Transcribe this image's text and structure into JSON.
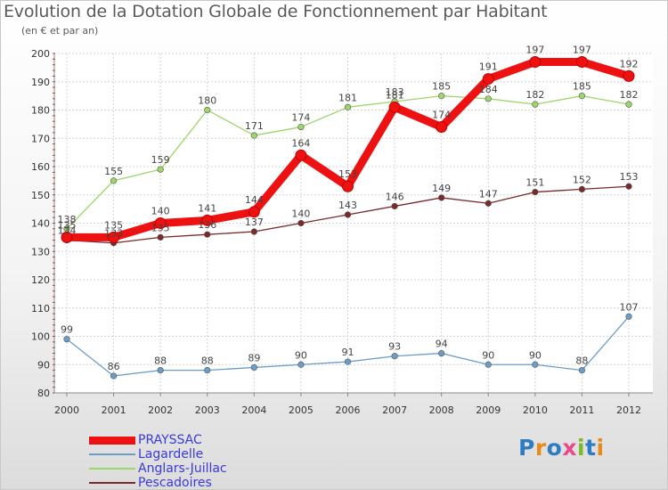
{
  "header": {
    "title": "Evolution de la Dotation Globale de Fonctionnement par Habitant",
    "subtitle": "(en € et par an)"
  },
  "logo": {
    "text": "Proxiti",
    "colors": [
      "#2e7cc4",
      "#e88a1a",
      "#2e7cc4",
      "#e84a8a",
      "#7ab82e",
      "#2e7cc4",
      "#e88a1a"
    ]
  },
  "chart_data": {
    "type": "line",
    "title": "Evolution de la Dotation Globale de Fonctionnement par Habitant",
    "subtitle": "(en € et par an)",
    "xlabel": "",
    "ylabel": "",
    "x": [
      "2000",
      "2001",
      "2002",
      "2003",
      "2004",
      "2005",
      "2006",
      "2007",
      "2008",
      "2009",
      "2010",
      "2011",
      "2012"
    ],
    "ylim": [
      80,
      200
    ],
    "yticks": [
      "80",
      "90",
      "100",
      "110",
      "120",
      "130",
      "140",
      "150",
      "160",
      "170",
      "180",
      "190",
      "200"
    ],
    "grid": true,
    "legend_position": "bottom-left",
    "series": [
      {
        "name": "Lagardelle",
        "color": "#6a9ec8",
        "values": [
          99,
          86,
          88,
          88,
          89,
          90,
          91,
          93,
          94,
          90,
          90,
          88,
          107
        ]
      },
      {
        "name": "Anglars-Juillac",
        "color": "#9dd66a",
        "values": [
          138,
          155,
          159,
          180,
          171,
          174,
          181,
          183,
          185,
          184,
          182,
          185,
          182
        ]
      },
      {
        "name": "Pescadoires",
        "color": "#7a2a2a",
        "values": [
          134,
          133,
          135,
          136,
          137,
          140,
          143,
          146,
          149,
          147,
          151,
          152,
          153
        ]
      },
      {
        "name": "PRAYSSAC",
        "color": "#ee1111",
        "values": [
          135,
          135,
          140,
          141,
          144,
          164,
          153,
          181,
          174,
          191,
          197,
          197,
          192
        ]
      }
    ],
    "legend_order": [
      "PRAYSSAC",
      "Lagardelle",
      "Anglars-Juillac",
      "Pescadoires"
    ]
  }
}
